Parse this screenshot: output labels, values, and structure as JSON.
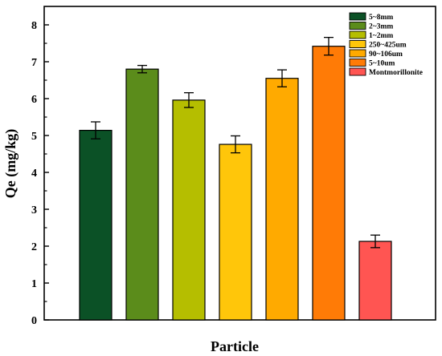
{
  "chart_data": {
    "type": "bar",
    "title": "",
    "xlabel": "Particle",
    "ylabel": "Qe (mg/kg)",
    "ylim": [
      0,
      8.5
    ],
    "yticks": [
      0,
      1,
      2,
      3,
      4,
      5,
      6,
      7,
      8
    ],
    "grid": false,
    "legend_position": "top-right",
    "categories": [
      "5~8mm",
      "2~3mm",
      "1~2mm",
      "250~425um",
      "90~106um",
      "5~10um",
      "Montmorillonite"
    ],
    "values": [
      5.14,
      6.8,
      5.96,
      4.76,
      6.55,
      7.42,
      2.13
    ],
    "errors": [
      0.23,
      0.1,
      0.2,
      0.23,
      0.23,
      0.24,
      0.17
    ],
    "colors": [
      "#0b5126",
      "#5b8c1b",
      "#b5be00",
      "#ffc60a",
      "#ffaa00",
      "#ff7b06",
      "#ff5552"
    ]
  }
}
